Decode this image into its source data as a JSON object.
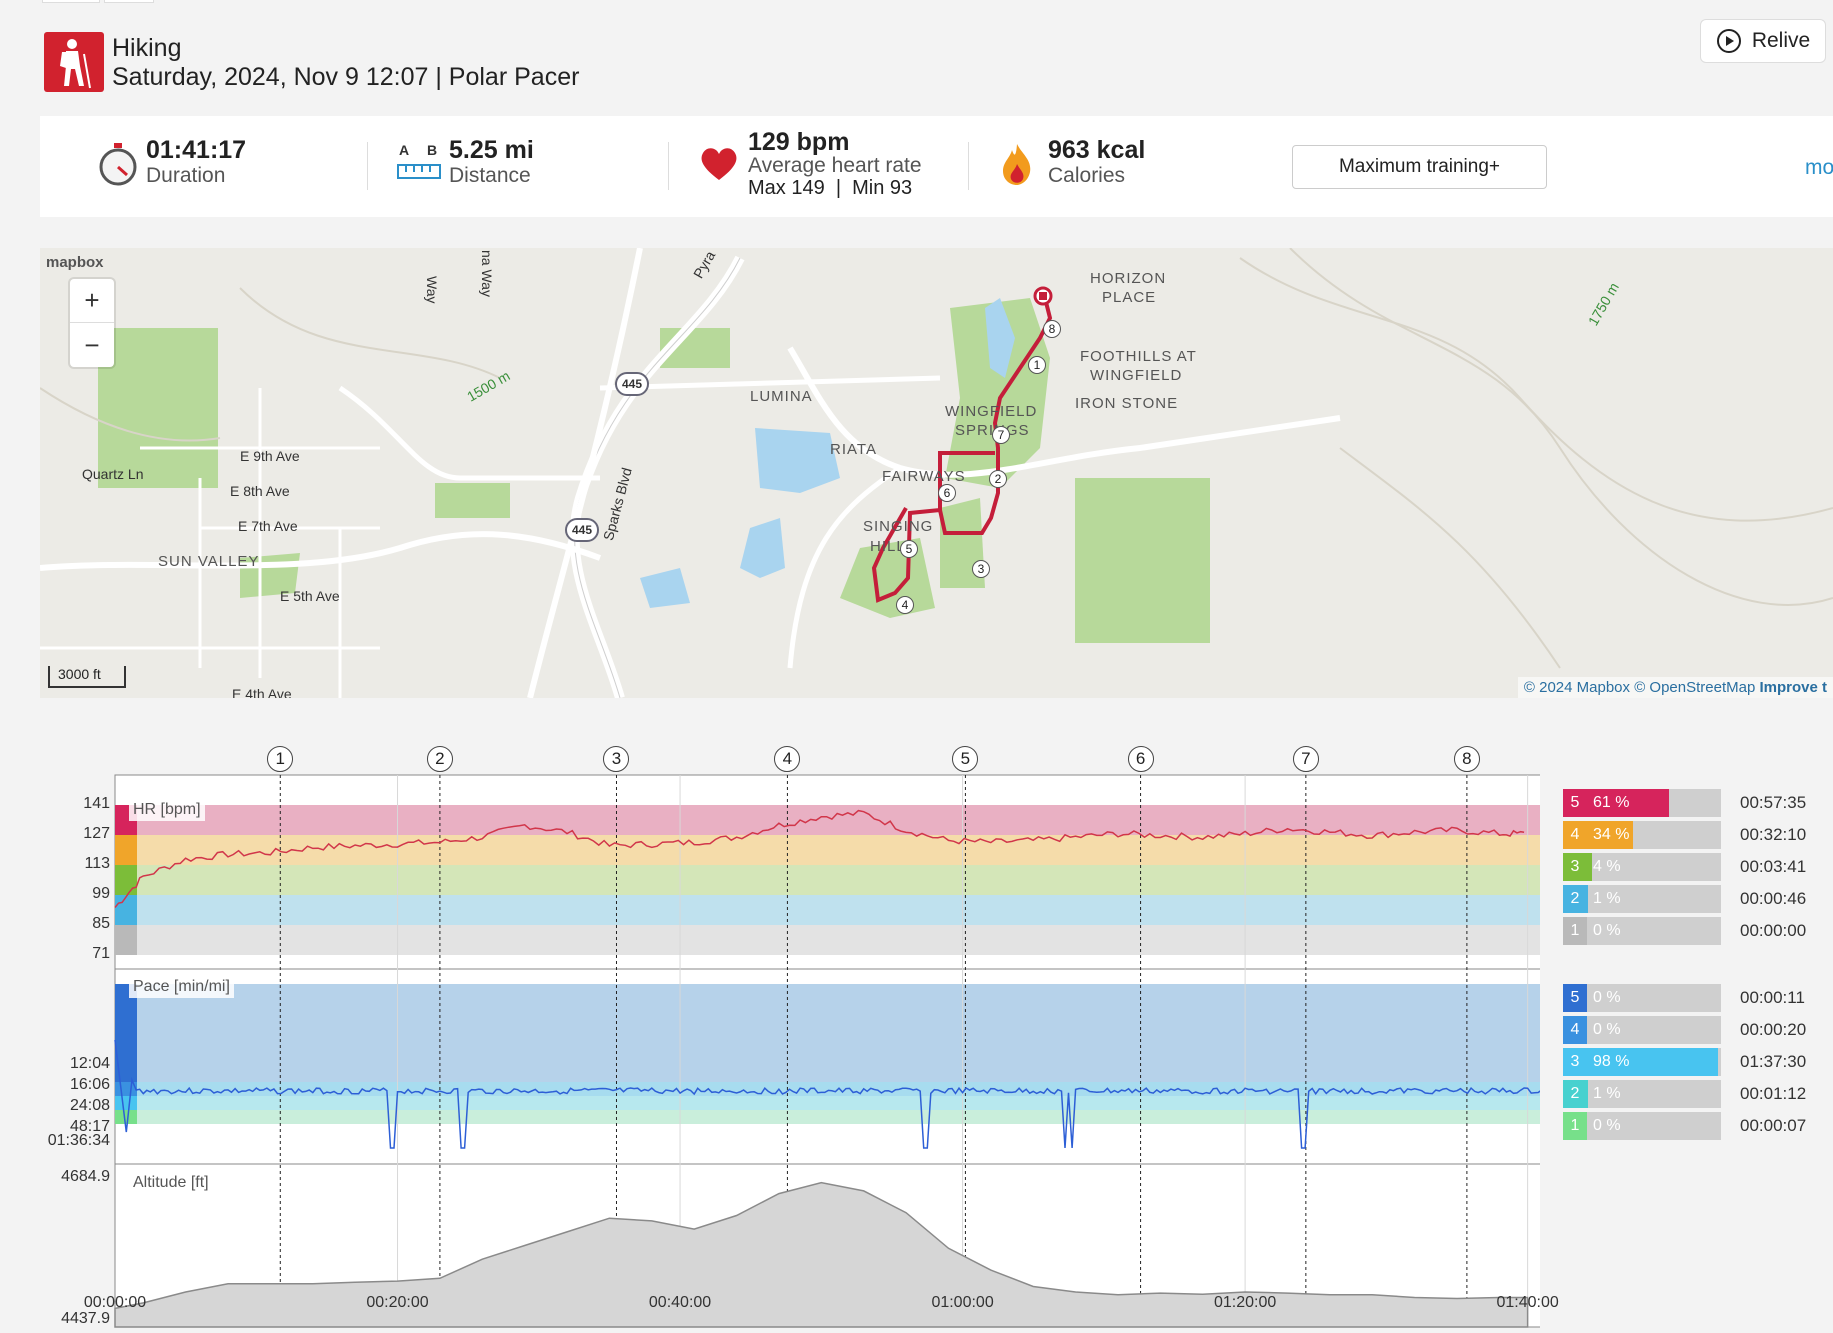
{
  "header": {
    "sport": "Hiking",
    "subtitle": "Saturday, 2024, Nov 9 12:07 | Polar Pacer",
    "relive_label": "Relive"
  },
  "stats": {
    "duration_value": "01:41:17",
    "duration_label": "Duration",
    "distance_value": "5.25 mi",
    "distance_label": "Distance",
    "distance_icon_a": "A",
    "distance_icon_b": "B",
    "hr_value": "129 bpm",
    "hr_label": "Average heart rate",
    "hr_minmax": "Max 149  |  Min 93",
    "calories_value": "963 kcal",
    "calories_label": "Calories",
    "training_button": "Maximum training+",
    "more_link": "mo"
  },
  "map": {
    "logo": "mapbox",
    "zoom_in": "+",
    "zoom_out": "−",
    "scale": "3000 ft",
    "attribution": "© 2024 Mapbox © OpenStreetMap",
    "improve": "Improve t",
    "labels": [
      "HORIZON",
      "PLACE",
      "FOOTHILLS AT",
      "WINGFIELD",
      "IRON STONE",
      "LUMINA",
      "RIATA",
      "WINGFIELD",
      "SPRINGS",
      "FAIRWAYS",
      "SINGING",
      "HILLS",
      "SUN VALLEY"
    ],
    "streets": [
      "E 9th Ave",
      "Quartz Ln",
      "E 8th Ave",
      "E 7th Ave",
      "E 5th Ave",
      "E 4th Ave",
      "Sparks Blvd",
      "Pyra",
      "Way",
      "na Way",
      "1500 m",
      "1750 m",
      "445"
    ],
    "markers": [
      "1",
      "2",
      "3",
      "4",
      "5",
      "6",
      "7",
      "8"
    ],
    "icons": [
      "zoom-in-icon",
      "zoom-out-icon",
      "route-start-icon"
    ]
  },
  "chart": {
    "laps": [
      "1",
      "2",
      "3",
      "4",
      "5",
      "6",
      "7",
      "8"
    ],
    "hr_tag": "HR [bpm]",
    "pace_tag": "Pace [min/mi]",
    "alt_tag": "Altitude [ft]",
    "hr_ticks": [
      "141",
      "127",
      "113",
      "99",
      "85",
      "71"
    ],
    "pace_ticks": [
      "12:04",
      "16:06",
      "24:08",
      "48:17",
      "01:36:34"
    ],
    "alt_ticks": [
      "4684.9",
      "4437.9"
    ],
    "x_ticks": [
      "00:00:00",
      "00:20:00",
      "00:40:00",
      "01:00:00",
      "01:20:00",
      "01:40:00"
    ],
    "hr_zones": [
      {
        "zone": "5",
        "pct": "61 %",
        "fill": 0.61,
        "time": "00:57:35",
        "color": "#d6245c"
      },
      {
        "zone": "4",
        "pct": "34 %",
        "fill": 0.34,
        "time": "00:32:10",
        "color": "#f0a52a"
      },
      {
        "zone": "3",
        "pct": "4 %",
        "fill": 0.04,
        "time": "00:03:41",
        "color": "#7cbd39"
      },
      {
        "zone": "2",
        "pct": "1 %",
        "fill": 0.01,
        "time": "00:00:46",
        "color": "#47b3e1"
      },
      {
        "zone": "1",
        "pct": "0 %",
        "fill": 0.0,
        "time": "00:00:00",
        "color": "#b9b9b9"
      }
    ],
    "pace_zones": [
      {
        "zone": "5",
        "pct": "0 %",
        "fill": 0.0,
        "time": "00:00:11",
        "color": "#2f6fd1"
      },
      {
        "zone": "4",
        "pct": "0 %",
        "fill": 0.0,
        "time": "00:00:20",
        "color": "#3a91e0"
      },
      {
        "zone": "3",
        "pct": "98 %",
        "fill": 0.98,
        "time": "01:37:30",
        "color": "#48c4f0"
      },
      {
        "zone": "2",
        "pct": "1 %",
        "fill": 0.01,
        "time": "00:01:12",
        "color": "#47d1cf"
      },
      {
        "zone": "1",
        "pct": "0 %",
        "fill": 0.0,
        "time": "00:00:07",
        "color": "#77e08a"
      }
    ]
  },
  "chart_data": {
    "type": "line",
    "x_minutes": [
      0,
      2,
      5,
      8,
      11,
      14,
      17,
      20,
      23,
      26,
      29,
      32,
      35,
      38,
      41,
      44,
      47,
      50,
      53,
      56,
      59,
      62,
      65,
      68,
      71,
      74,
      77,
      80,
      83,
      86,
      89,
      92,
      95,
      98,
      100
    ],
    "series": [
      {
        "name": "HR [bpm]",
        "values": [
          90,
          108,
          118,
          121,
          122,
          125,
          126,
          127,
          128,
          131,
          138,
          134,
          126,
          127,
          128,
          131,
          138,
          143,
          145,
          135,
          129,
          128,
          129,
          131,
          133,
          132,
          131,
          133,
          136,
          134,
          132,
          134,
          135,
          133,
          133
        ]
      },
      {
        "name": "Altitude [ft]",
        "values": [
          4450,
          4460,
          4480,
          4495,
          4495,
          4495,
          4498,
          4500,
          4505,
          4540,
          4565,
          4590,
          4615,
          4610,
          4595,
          4620,
          4660,
          4680,
          4665,
          4625,
          4560,
          4520,
          4490,
          4480,
          4475,
          4478,
          4476,
          4480,
          4478,
          4475,
          4475,
          4470,
          4468,
          4470,
          4470
        ]
      }
    ],
    "xlim": [
      0,
      101.3
    ],
    "hr_ylim": [
      71,
      155
    ],
    "alt_ylim": [
      4437.9,
      4684.9
    ]
  }
}
